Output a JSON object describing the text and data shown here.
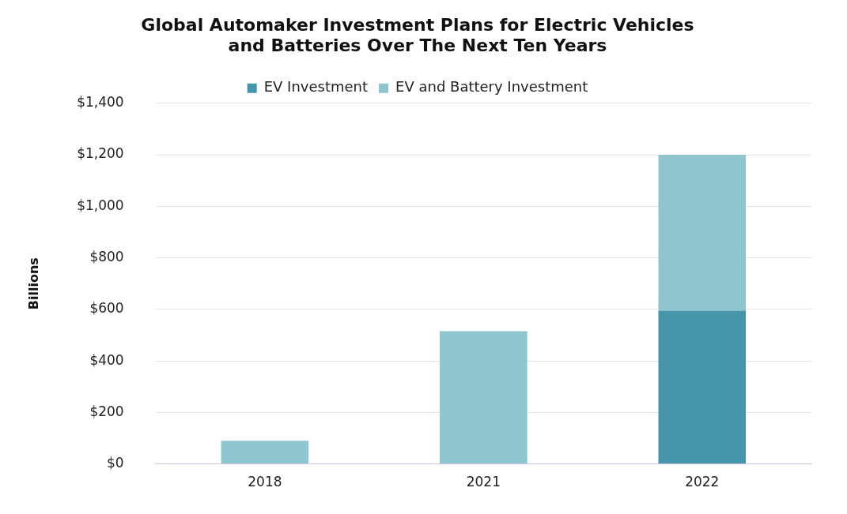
{
  "chart_data": {
    "type": "bar",
    "title": [
      "Global Automaker Investment Plans for Electric Vehicles",
      "and Batteries Over The Next Ten Years"
    ],
    "ylabel": "Billions",
    "categories": [
      "2018",
      "2021",
      "2022"
    ],
    "series": [
      {
        "name": "EV Investment",
        "color": "#4596aa",
        "values": [
          null,
          null,
          595
        ]
      },
      {
        "name": "EV and Battery Investment",
        "color": "#8fc5cf",
        "values": [
          90,
          515,
          605
        ]
      }
    ],
    "stacked": true,
    "ylim": [
      0,
      1400
    ],
    "yticks": [
      {
        "value": 0,
        "label": "$0"
      },
      {
        "value": 200,
        "label": "$200"
      },
      {
        "value": 400,
        "label": "$400"
      },
      {
        "value": 600,
        "label": "$600"
      },
      {
        "value": 800,
        "label": "$800"
      },
      {
        "value": 1000,
        "label": "$1,000"
      },
      {
        "value": 1200,
        "label": "$1,200"
      },
      {
        "value": 1400,
        "label": "$1,400"
      }
    ],
    "grid": "y",
    "legend": "top"
  }
}
